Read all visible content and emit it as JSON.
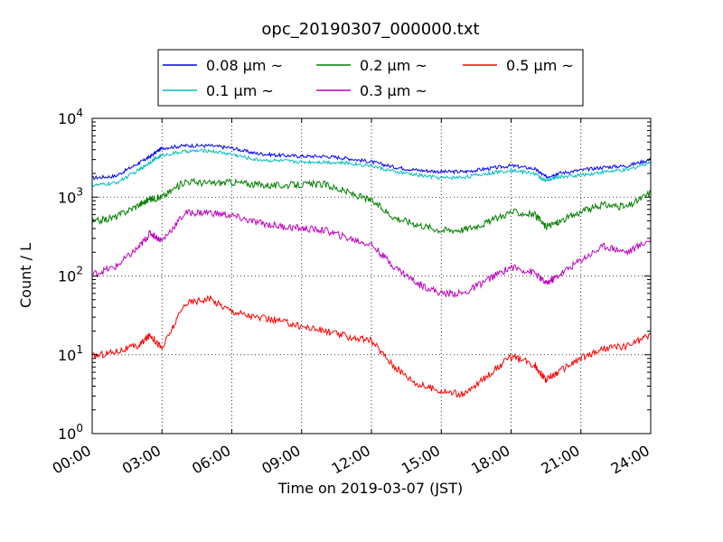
{
  "chart_data": {
    "type": "line",
    "title": "opc_20190307_000000.txt",
    "xlabel": "Time on 2019-03-07 (JST)",
    "ylabel": "Count / L",
    "yscale": "log",
    "ylim": [
      1,
      10000
    ],
    "xlim": [
      "2019-03-07 00:00",
      "2019-03-08 00:00"
    ],
    "x_ticks": [
      "00:00",
      "03:00",
      "06:00",
      "09:00",
      "12:00",
      "15:00",
      "18:00",
      "21:00",
      "24:00"
    ],
    "y_ticks": [
      {
        "base": "10",
        "exp": "0",
        "value": 1
      },
      {
        "base": "10",
        "exp": "1",
        "value": 10
      },
      {
        "base": "10",
        "exp": "2",
        "value": 100
      },
      {
        "base": "10",
        "exp": "3",
        "value": 1000
      },
      {
        "base": "10",
        "exp": "4",
        "value": 10000
      }
    ],
    "grid": true,
    "legend_position": "top-center",
    "x": [
      "00:00",
      "01:00",
      "02:00",
      "02:30",
      "03:00",
      "04:00",
      "05:00",
      "06:00",
      "07:00",
      "08:00",
      "09:00",
      "10:00",
      "11:00",
      "12:00",
      "13:00",
      "14:00",
      "15:00",
      "16:00",
      "17:00",
      "18:00",
      "19:00",
      "19:30",
      "20:00",
      "21:00",
      "22:00",
      "23:00",
      "24:00"
    ],
    "series": [
      {
        "name": "0.08 μm ~",
        "color": "#0000ff",
        "values": [
          1750,
          1850,
          2700,
          3300,
          4200,
          4500,
          4500,
          4200,
          3600,
          3400,
          3300,
          3300,
          3100,
          2800,
          2400,
          2200,
          2100,
          2100,
          2300,
          2500,
          2300,
          1800,
          2000,
          2200,
          2400,
          2500,
          3000
        ]
      },
      {
        "name": "0.1 μm ~",
        "color": "#00bfbf",
        "values": [
          1400,
          1500,
          2200,
          2800,
          3400,
          3800,
          3900,
          3500,
          3000,
          2900,
          2800,
          2800,
          2700,
          2500,
          2100,
          1900,
          1750,
          1800,
          2000,
          2200,
          2000,
          1600,
          1800,
          1900,
          2100,
          2200,
          2800
        ]
      },
      {
        "name": "0.2 μm ~",
        "color": "#008000",
        "values": [
          480,
          560,
          800,
          950,
          1000,
          1600,
          1500,
          1550,
          1450,
          1400,
          1450,
          1450,
          1150,
          900,
          550,
          450,
          380,
          390,
          480,
          650,
          600,
          420,
          480,
          650,
          800,
          750,
          1150
        ]
      },
      {
        "name": "0.3 μm ~",
        "color": "#bf00bf",
        "values": [
          105,
          130,
          230,
          350,
          280,
          630,
          640,
          580,
          480,
          430,
          400,
          380,
          300,
          250,
          130,
          80,
          60,
          60,
          90,
          130,
          110,
          80,
          100,
          160,
          240,
          200,
          290
        ]
      },
      {
        "name": "0.5 μm ~",
        "color": "#ff0000",
        "values": [
          9.5,
          11,
          13,
          18,
          12,
          45,
          52,
          36,
          30,
          27,
          23,
          20,
          17,
          15,
          7,
          4.2,
          3.5,
          3.1,
          5.5,
          9.5,
          7.5,
          4.8,
          6,
          9,
          12,
          13,
          18
        ]
      }
    ]
  }
}
